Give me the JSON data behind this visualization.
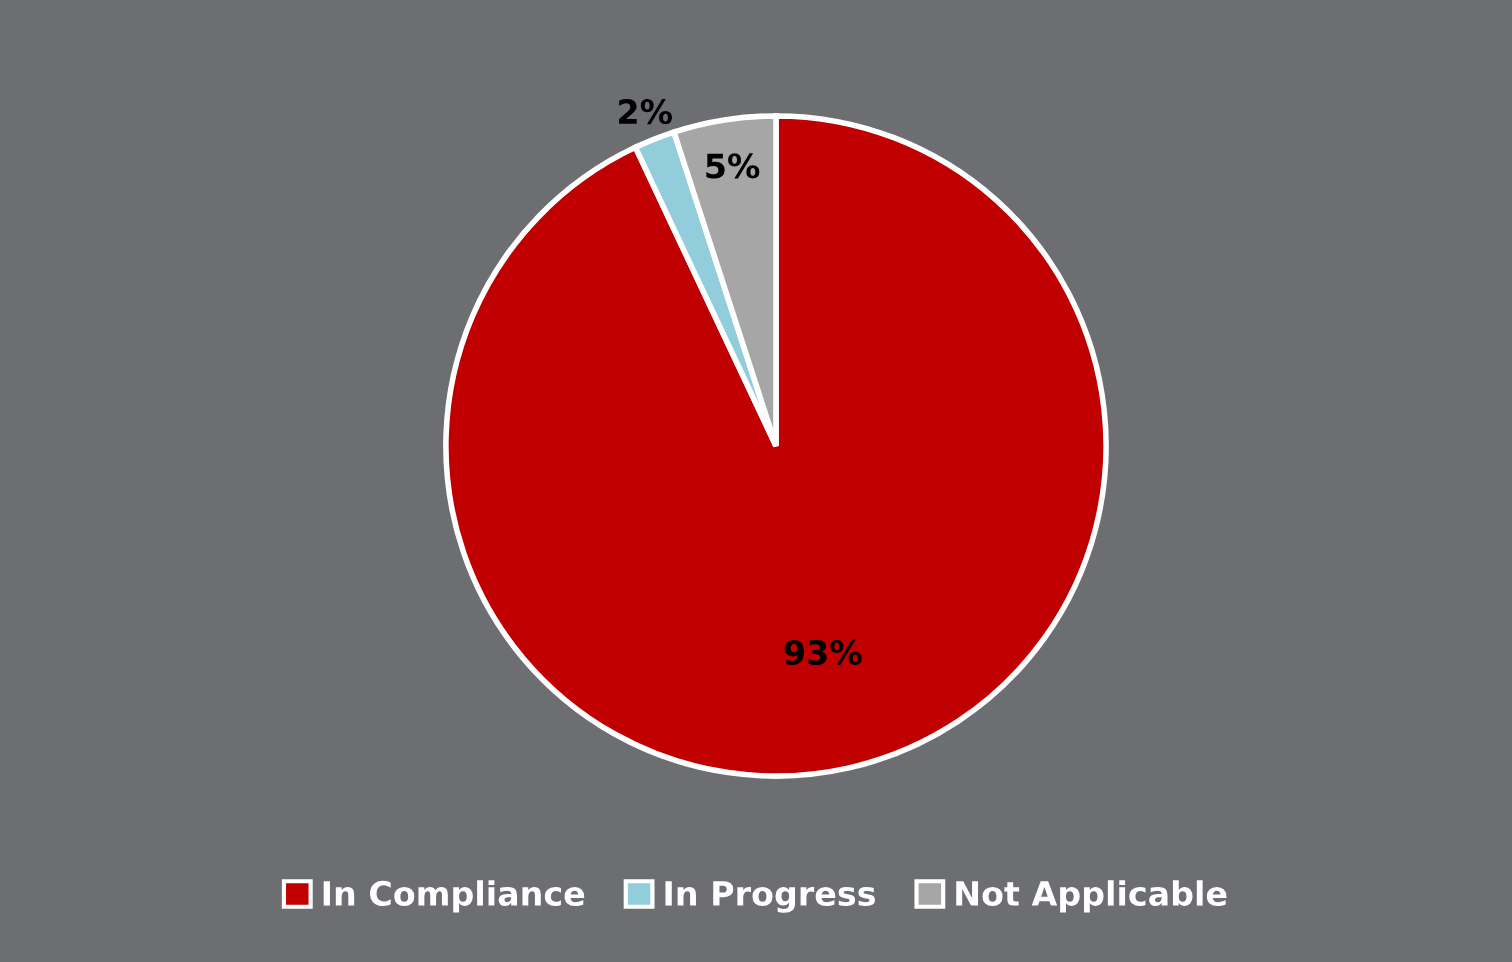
{
  "chart_data": {
    "type": "pie",
    "categories": [
      "In Compliance",
      "In Progress",
      "Not Applicable"
    ],
    "values": [
      93,
      2,
      5
    ],
    "colors": [
      "#c00000",
      "#92cddc",
      "#a6a6a6"
    ],
    "value_labels": [
      "93%",
      "2%",
      "5%"
    ],
    "legend": "bottom"
  }
}
